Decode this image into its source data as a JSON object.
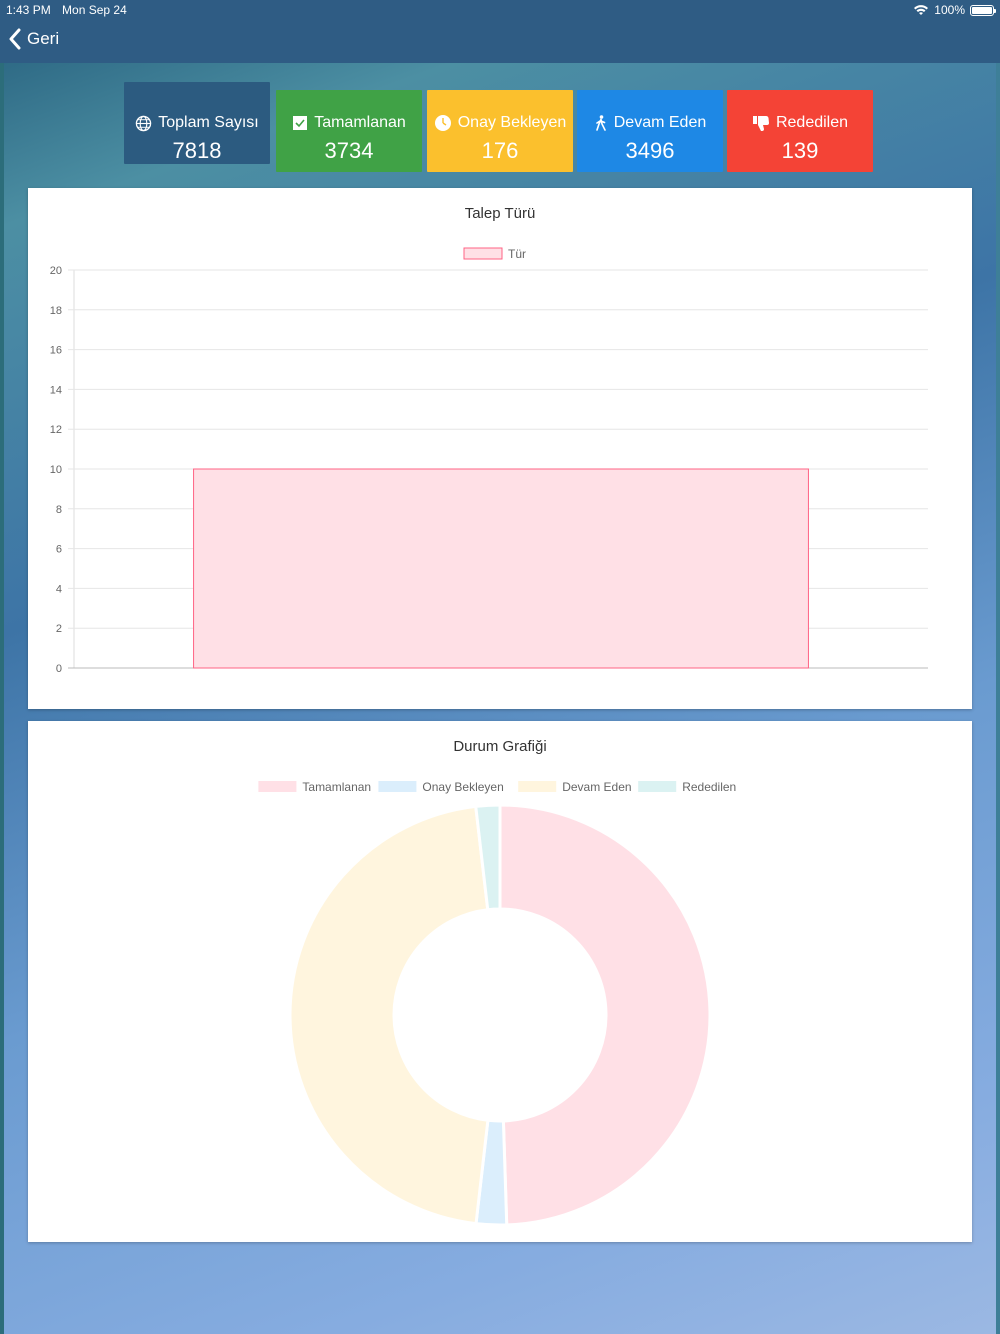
{
  "status_bar": {
    "time": "1:43 PM",
    "date": "Mon Sep 24",
    "battery": "100%"
  },
  "nav": {
    "back_label": "Geri"
  },
  "stats": [
    {
      "label": "Toplam Sayısı",
      "value": "7818",
      "icon": "globe-icon",
      "color": "#2c5b80"
    },
    {
      "label": "Tamamlanan",
      "value": "3734",
      "icon": "checkbox-icon",
      "color": "#40a246"
    },
    {
      "label": "Onay Bekleyen",
      "value": "176",
      "icon": "clock-icon",
      "color": "#fbc02d"
    },
    {
      "label": "Devam Eden",
      "value": "3496",
      "icon": "walking-icon",
      "color": "#1e88e5"
    },
    {
      "label": "Rededilen",
      "value": "139",
      "icon": "thumbs-down-icon",
      "color": "#f44336"
    }
  ],
  "chart_data": [
    {
      "type": "bar",
      "title": "Talep Türü",
      "series": [
        {
          "name": "Tür",
          "values": [
            10
          ],
          "fill": "#ffe0e6",
          "stroke": "#ff6384"
        }
      ],
      "categories": [
        ""
      ],
      "ylim": [
        0,
        20
      ],
      "yticks": [
        0,
        2,
        4,
        6,
        8,
        10,
        12,
        14,
        16,
        18,
        20
      ],
      "grid": true,
      "legend": "top"
    },
    {
      "type": "pie",
      "variant": "doughnut",
      "title": "Durum Grafiği",
      "labels": [
        "Tamamlanan",
        "Onay Bekleyen",
        "Devam Eden",
        "Rededilen"
      ],
      "values": [
        3734,
        176,
        3496,
        139
      ],
      "colors": [
        "#ffe0e6",
        "#dbeefc",
        "#fff5de",
        "#dbf2f2"
      ],
      "legend": "top"
    }
  ]
}
